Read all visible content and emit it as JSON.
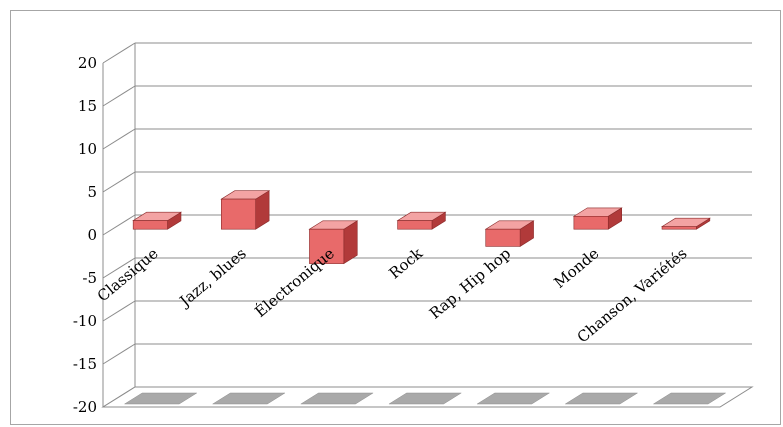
{
  "chart_data": {
    "type": "bar",
    "style": "3d-column",
    "categories": [
      "Classique",
      "Jazz, blues",
      "Électronique",
      "Rock",
      "Rap, Hip hop",
      "Monde",
      "Chanson, Variétés"
    ],
    "values": [
      1,
      3.5,
      -4,
      1,
      -2,
      1.5,
      0.3
    ],
    "ylim": [
      -20,
      20
    ],
    "yticks": [
      20,
      15,
      10,
      5,
      0,
      -5,
      -10,
      -15,
      -20
    ],
    "grid": true,
    "legend": "none",
    "colors": {
      "bar_front": "#e86a6a",
      "bar_side": "#b13a3a",
      "bar_top": "#f3a3a3",
      "floor_tile": "#a9a9a9",
      "grid": "#8c8c8c"
    }
  }
}
